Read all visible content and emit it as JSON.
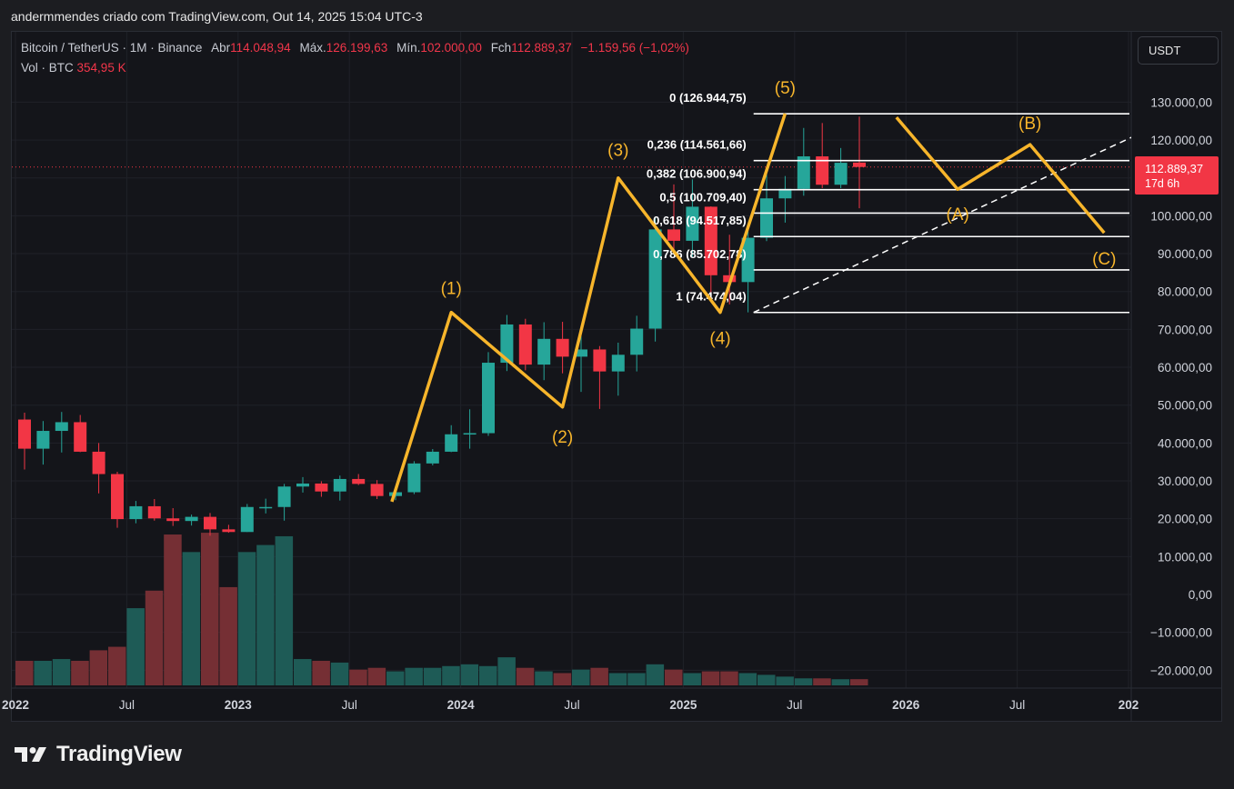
{
  "header": {
    "caption": "andermmendes criado com TradingView.com, Out 14, 2025 15:04 UTC-3"
  },
  "legend": {
    "symbol": "Bitcoin / TetherUS · 1M · Binance",
    "open_label": "Abr",
    "open": "114.048,94",
    "high_label": "Máx.",
    "high": "126.199,63",
    "low_label": "Mín.",
    "low": "102.000,00",
    "close_label": "Fch",
    "close": "112.889,37",
    "change": "−1.159,56 (−1,02%)",
    "volume_label": "Vol · BTC",
    "volume": "354,95 K"
  },
  "currency_button": "USDT",
  "price_badge": {
    "price": "112.889,37",
    "countdown": "17d 6h"
  },
  "logo_text": "TradingView",
  "colors": {
    "background": "#14151a",
    "up": "#26a69a",
    "down": "#f23645",
    "wave": "#f7b52b",
    "fib": "#ffffff"
  },
  "chart_data": {
    "type": "candlestick",
    "y_axis": {
      "ylim": [
        -25000,
        145000
      ],
      "tick_values": [
        -20000,
        -10000,
        0,
        10000,
        20000,
        30000,
        40000,
        50000,
        60000,
        70000,
        80000,
        90000,
        100000,
        110000,
        120000,
        130000
      ],
      "tick_labels": [
        "−20.000,00",
        "−10.000,00",
        "0,00",
        "10.000,00",
        "20.000,00",
        "30.000,00",
        "40.000,00",
        "50.000,00",
        "60.000,00",
        "70.000,00",
        "80.000,00",
        "90.000,00",
        "100.000,00",
        "110.000,00",
        "120.000,00",
        "130.000,00"
      ]
    },
    "x_axis": {
      "labels": [
        "2022",
        "Jul",
        "2023",
        "Jul",
        "2024",
        "Jul",
        "2025",
        "Jul",
        "2026",
        "Jul",
        "202"
      ],
      "label_month_index": [
        0,
        6,
        12,
        18,
        24,
        30,
        36,
        42,
        48,
        54,
        60
      ]
    },
    "candles": [
      {
        "month": "2022-01",
        "o": 46200,
        "h": 48000,
        "l": 33000,
        "c": 38500
      },
      {
        "month": "2022-02",
        "o": 38500,
        "h": 45800,
        "l": 34300,
        "c": 43200
      },
      {
        "month": "2022-03",
        "o": 43200,
        "h": 48200,
        "l": 37500,
        "c": 45500
      },
      {
        "month": "2022-04",
        "o": 45500,
        "h": 47400,
        "l": 37600,
        "c": 37700
      },
      {
        "month": "2022-05",
        "o": 37700,
        "h": 40000,
        "l": 26700,
        "c": 31800
      },
      {
        "month": "2022-06",
        "o": 31800,
        "h": 32400,
        "l": 17600,
        "c": 19900
      },
      {
        "month": "2022-07",
        "o": 19900,
        "h": 24700,
        "l": 18800,
        "c": 23300
      },
      {
        "month": "2022-08",
        "o": 23300,
        "h": 25200,
        "l": 19500,
        "c": 20100
      },
      {
        "month": "2022-09",
        "o": 20100,
        "h": 22800,
        "l": 18100,
        "c": 19400
      },
      {
        "month": "2022-10",
        "o": 19400,
        "h": 21100,
        "l": 18200,
        "c": 20500
      },
      {
        "month": "2022-11",
        "o": 20500,
        "h": 21500,
        "l": 15500,
        "c": 17200
      },
      {
        "month": "2022-12",
        "o": 17200,
        "h": 18400,
        "l": 16300,
        "c": 16500
      },
      {
        "month": "2023-01",
        "o": 16500,
        "h": 23900,
        "l": 16500,
        "c": 23100
      },
      {
        "month": "2023-02",
        "o": 23100,
        "h": 25300,
        "l": 21400,
        "c": 23100
      },
      {
        "month": "2023-03",
        "o": 23100,
        "h": 29200,
        "l": 19500,
        "c": 28500
      },
      {
        "month": "2023-04",
        "o": 28500,
        "h": 31000,
        "l": 26900,
        "c": 29300
      },
      {
        "month": "2023-05",
        "o": 29300,
        "h": 29900,
        "l": 25800,
        "c": 27200
      },
      {
        "month": "2023-06",
        "o": 27200,
        "h": 31400,
        "l": 24800,
        "c": 30500
      },
      {
        "month": "2023-07",
        "o": 30500,
        "h": 31800,
        "l": 28900,
        "c": 29200
      },
      {
        "month": "2023-08",
        "o": 29200,
        "h": 30200,
        "l": 25200,
        "c": 26000
      },
      {
        "month": "2023-09",
        "o": 26000,
        "h": 27500,
        "l": 24900,
        "c": 27000
      },
      {
        "month": "2023-10",
        "o": 27000,
        "h": 35200,
        "l": 26500,
        "c": 34600
      },
      {
        "month": "2023-11",
        "o": 34600,
        "h": 38400,
        "l": 34100,
        "c": 37700
      },
      {
        "month": "2023-12",
        "o": 37700,
        "h": 44700,
        "l": 37600,
        "c": 42300
      },
      {
        "month": "2024-01",
        "o": 42300,
        "h": 48900,
        "l": 38500,
        "c": 42600
      },
      {
        "month": "2024-02",
        "o": 42600,
        "h": 64000,
        "l": 41900,
        "c": 61200
      },
      {
        "month": "2024-03",
        "o": 61200,
        "h": 73800,
        "l": 59000,
        "c": 71300
      },
      {
        "month": "2024-04",
        "o": 71300,
        "h": 72800,
        "l": 59200,
        "c": 60700
      },
      {
        "month": "2024-05",
        "o": 60700,
        "h": 71900,
        "l": 56600,
        "c": 67500
      },
      {
        "month": "2024-06",
        "o": 67500,
        "h": 72000,
        "l": 58400,
        "c": 62800
      },
      {
        "month": "2024-07",
        "o": 62800,
        "h": 70000,
        "l": 53500,
        "c": 64700
      },
      {
        "month": "2024-08",
        "o": 64700,
        "h": 65600,
        "l": 49000,
        "c": 58900
      },
      {
        "month": "2024-09",
        "o": 58900,
        "h": 66500,
        "l": 52500,
        "c": 63300
      },
      {
        "month": "2024-10",
        "o": 63300,
        "h": 73600,
        "l": 58900,
        "c": 70200
      },
      {
        "month": "2024-11",
        "o": 70200,
        "h": 99600,
        "l": 66800,
        "c": 96400
      },
      {
        "month": "2024-12",
        "o": 96400,
        "h": 108300,
        "l": 90500,
        "c": 93400
      },
      {
        "month": "2025-01",
        "o": 93400,
        "h": 109600,
        "l": 89200,
        "c": 102400
      },
      {
        "month": "2025-02",
        "o": 102400,
        "h": 102500,
        "l": 78300,
        "c": 84300
      },
      {
        "month": "2025-03",
        "o": 84300,
        "h": 95000,
        "l": 76600,
        "c": 82500
      },
      {
        "month": "2025-04",
        "o": 82500,
        "h": 97900,
        "l": 74500,
        "c": 94200
      },
      {
        "month": "2025-05",
        "o": 94200,
        "h": 111900,
        "l": 93300,
        "c": 104600
      },
      {
        "month": "2025-06",
        "o": 104600,
        "h": 110500,
        "l": 98200,
        "c": 107100
      },
      {
        "month": "2025-07",
        "o": 107100,
        "h": 123200,
        "l": 105300,
        "c": 115700
      },
      {
        "month": "2025-08",
        "o": 115700,
        "h": 124500,
        "l": 107300,
        "c": 108200
      },
      {
        "month": "2025-09",
        "o": 108200,
        "h": 117900,
        "l": 107300,
        "c": 114000
      },
      {
        "month": "2025-10",
        "o": 114048.94,
        "h": 126199.63,
        "l": 102000,
        "c": 112889.37
      }
    ],
    "volume_series": {
      "name": "Vol · BTC",
      "values_k": [
        1400,
        1400,
        1500,
        1400,
        2000,
        2200,
        4400,
        5400,
        8600,
        7600,
        8700,
        5600,
        7600,
        8000,
        8500,
        1500,
        1400,
        1300,
        900,
        1000,
        800,
        1000,
        1000,
        1100,
        1200,
        1100,
        1600,
        1000,
        800,
        700,
        900,
        1000,
        700,
        700,
        1200,
        900,
        700,
        800,
        800,
        700,
        600,
        500,
        400,
        400,
        350,
        355
      ]
    },
    "elliott_impulse": [
      {
        "label": "(1)",
        "month_index": 23,
        "price": 74500
      },
      {
        "label": "(2)",
        "month_index": 29,
        "price": 49500
      },
      {
        "label": "(3)",
        "month_index": 32,
        "price": 110000
      },
      {
        "label": "(4)",
        "month_index": 37.5,
        "price": 74500
      },
      {
        "label": "(5)",
        "month_index": 41,
        "price": 127000
      }
    ],
    "elliott_impulse_start": {
      "month_index": 19.8,
      "price": 24500
    },
    "elliott_correction": [
      {
        "label": "",
        "month_index": 47,
        "price": 126000
      },
      {
        "label": "(A)",
        "month_index": 50.3,
        "price": 107000
      },
      {
        "label": "(B)",
        "month_index": 54.2,
        "price": 118800
      },
      {
        "label": "(C)",
        "month_index": 58.2,
        "price": 95500
      }
    ],
    "fibonacci_levels": [
      {
        "label": "0 (126.944,75)",
        "price": 126944.75
      },
      {
        "label": "0,236 (114.561,66)",
        "price": 114561.66
      },
      {
        "label": "0,382 (106.900,94)",
        "price": 106900.94
      },
      {
        "label": "0,5 (100.709,40)",
        "price": 100709.4
      },
      {
        "label": "0,618 (94.517,85)",
        "price": 94517.85
      },
      {
        "label": "0,786 (85.702,78)",
        "price": 85702.78
      },
      {
        "label": "1 (74.474,04)",
        "price": 74474.04
      }
    ],
    "trendline": {
      "from": {
        "month_index": 39.3,
        "price": 74474
      },
      "to": {
        "month_index": 62,
        "price": 126000
      }
    }
  }
}
